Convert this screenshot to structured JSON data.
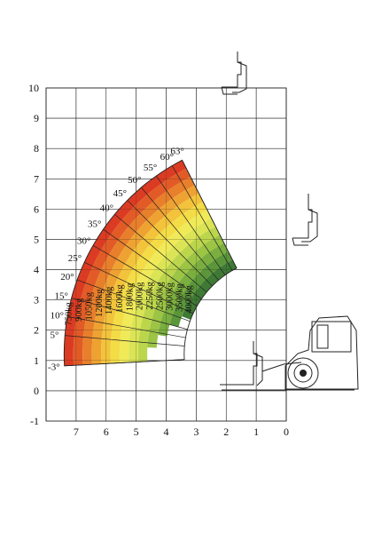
{
  "chart_data": {
    "type": "area",
    "title": "",
    "xlabel": "",
    "ylabel": "",
    "xlim": [
      8,
      0
    ],
    "ylim": [
      -1,
      10
    ],
    "x_ticks": [
      "7",
      "6",
      "5",
      "4",
      "3",
      "2",
      "1",
      "0"
    ],
    "y_ticks": [
      "10",
      "9",
      "8",
      "7",
      "6",
      "5",
      "4",
      "3",
      "2",
      "1",
      "0",
      "-1"
    ],
    "grid": true,
    "boom_angles": [
      {
        "label": "63°",
        "value": 63
      },
      {
        "label": "60°",
        "value": 60
      },
      {
        "label": "55°",
        "value": 55
      },
      {
        "label": "50°",
        "value": 50
      },
      {
        "label": "45°",
        "value": 45
      },
      {
        "label": "40°",
        "value": 40
      },
      {
        "label": "35°",
        "value": 35
      },
      {
        "label": "30°",
        "value": 30
      },
      {
        "label": "25°",
        "value": 25
      },
      {
        "label": "20°",
        "value": 20
      },
      {
        "label": "15°",
        "value": 15
      },
      {
        "label": "10°",
        "value": 10
      },
      {
        "label": "5°",
        "value": 5
      },
      {
        "label": "-3°",
        "value": -3
      }
    ],
    "load_zones": [
      {
        "label": "750kg",
        "value": 750,
        "color": "#db3b22"
      },
      {
        "label": "900kg",
        "value": 900,
        "color": "#e25b26"
      },
      {
        "label": "1050kg",
        "value": 1050,
        "color": "#e87f2b"
      },
      {
        "label": "1200kg",
        "value": 1200,
        "color": "#eea232"
      },
      {
        "label": "1400kg",
        "value": 1400,
        "color": "#f2c33b"
      },
      {
        "label": "1600kg",
        "value": 1600,
        "color": "#f3dc46"
      },
      {
        "label": "1800kg",
        "value": 1800,
        "color": "#f0ea59"
      },
      {
        "label": "2000kg",
        "value": 2000,
        "color": "#dbe455"
      },
      {
        "label": "2250kg",
        "value": 2250,
        "color": "#bcd64c"
      },
      {
        "label": "2500kg",
        "value": 2500,
        "color": "#9cc445"
      },
      {
        "label": "3000kg",
        "value": 3000,
        "color": "#7aae3f"
      },
      {
        "label": "3500kg",
        "value": 3500,
        "color": "#5b963a"
      },
      {
        "label": "4000kg",
        "value": 4000,
        "color": "#3f7a35"
      }
    ]
  }
}
